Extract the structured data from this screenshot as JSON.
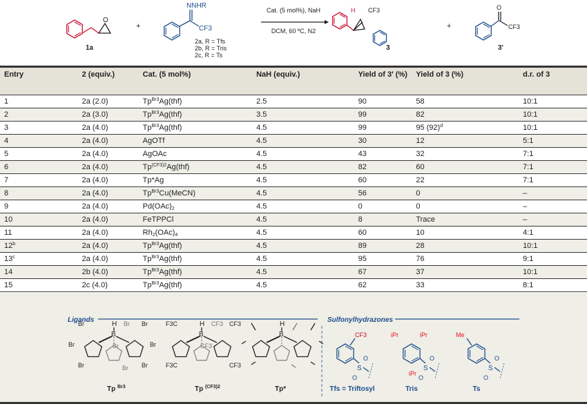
{
  "scheme": {
    "reactant1": {
      "label": "1a",
      "atoms": [
        "O"
      ]
    },
    "plus": "+",
    "reactant2": {
      "atoms": [
        "NNHR",
        "CF3"
      ],
      "variants": [
        "2a, R = Tfs",
        "2b, R = Tris",
        "2c, R = Ts"
      ]
    },
    "conditions_top": "Cat. (5 mol%), NaH",
    "conditions_bottom": "DCM, 60 ºC, N2",
    "product": {
      "label": "3",
      "atoms": [
        "H",
        "CF3"
      ]
    },
    "byproduct": {
      "label": "3'",
      "atoms": [
        "O",
        "CF3"
      ]
    },
    "colors": {
      "red": "#c8102e",
      "blue": "#1f4e8c"
    }
  },
  "table": {
    "headers": [
      "Entry",
      "2 (equiv.)",
      "Cat. (5 mol%)",
      "NaH (equiv.)",
      "Yield of 3′ (%)",
      "Yield of 3 (%)",
      "d.r. of 3"
    ],
    "rows": [
      [
        "1",
        "2a (2.0)",
        [
          {
            "t": "Tp"
          },
          {
            "sup": "Br3"
          },
          {
            "t": "Ag(thf)"
          }
        ],
        "2.5",
        "90",
        "58",
        "10:1"
      ],
      [
        "2",
        "2a (3.0)",
        [
          {
            "t": "Tp"
          },
          {
            "sup": "Br3"
          },
          {
            "t": "Ag(thf)"
          }
        ],
        "3.5",
        "99",
        "82",
        "10:1"
      ],
      [
        "3",
        "2a (4.0)",
        [
          {
            "t": "Tp"
          },
          {
            "sup": "Br3"
          },
          {
            "t": "Ag(thf)"
          }
        ],
        "4.5",
        "99",
        [
          {
            "t": "95 (92)"
          },
          {
            "sup": "d"
          }
        ],
        "10:1"
      ],
      [
        "4",
        "2a (4.0)",
        "AgOTf",
        "4.5",
        "30",
        "12",
        "5:1"
      ],
      [
        "5",
        "2a (4.0)",
        "AgOAc",
        "4.5",
        "43",
        "32",
        "7:1"
      ],
      [
        "6",
        "2a (4.0)",
        [
          {
            "t": "Tp"
          },
          {
            "sup": "(CF3)2"
          },
          {
            "t": "Ag(thf)"
          }
        ],
        "4.5",
        "82",
        "60",
        "7:1"
      ],
      [
        "7",
        "2a (4.0)",
        "Tp*Ag",
        "4.5",
        "60",
        "22",
        "7:1"
      ],
      [
        "8",
        "2a (4.0)",
        [
          {
            "t": "Tp"
          },
          {
            "sup": "Br3"
          },
          {
            "t": "Cu(MeCN)"
          }
        ],
        "4.5",
        "56",
        "0",
        "–"
      ],
      [
        "9",
        "2a (4.0)",
        [
          {
            "t": "Pd(OAc)"
          },
          {
            "sub": "2"
          }
        ],
        "4.5",
        "0",
        "0",
        "–"
      ],
      [
        "10",
        "2a (4.0)",
        "FeTPPCl",
        "4.5",
        "8",
        "Trace",
        "–"
      ],
      [
        "11",
        "2a (4.0)",
        [
          {
            "t": "Rh"
          },
          {
            "sub": "2"
          },
          {
            "t": "(OAc)"
          },
          {
            "sub": "4"
          }
        ],
        "4.5",
        "60",
        "10",
        "4:1"
      ],
      [
        [
          {
            "t": "12"
          },
          {
            "sup": "b"
          }
        ],
        "2a (4.0)",
        [
          {
            "t": "Tp"
          },
          {
            "sup": "Br3"
          },
          {
            "t": "Ag(thf)"
          }
        ],
        "4.5",
        "89",
        "28",
        "10:1"
      ],
      [
        [
          {
            "t": "13"
          },
          {
            "sup": "c"
          }
        ],
        "2a (4.0)",
        [
          {
            "t": "Tp"
          },
          {
            "sup": "Br3"
          },
          {
            "t": "Ag(thf)"
          }
        ],
        "4.5",
        "95",
        "76",
        "9:1"
      ],
      [
        "14",
        "2b (4.0)",
        [
          {
            "t": "Tp"
          },
          {
            "sup": "Br3"
          },
          {
            "t": "Ag(thf)"
          }
        ],
        "4.5",
        "67",
        "37",
        "10:1"
      ],
      [
        "15",
        "2c (4.0)",
        [
          {
            "t": "Tp"
          },
          {
            "sup": "Br3"
          },
          {
            "t": "Ag(thf)"
          }
        ],
        "4.5",
        "62",
        "33",
        "8:1"
      ]
    ]
  },
  "ligands": {
    "heading": "Ligands",
    "items": [
      {
        "name": "Tp",
        "sup": "Br3",
        "subst": [
          "Br",
          "Br",
          "Br",
          "Br",
          "Br",
          "Br",
          "Br",
          "Br",
          "Br"
        ]
      },
      {
        "name": "Tp",
        "sup": "(CF3)2",
        "subst": [
          "F3C",
          "",
          "F3C",
          "CF3",
          "",
          "CF3",
          "CF3",
          "",
          "CF3"
        ]
      },
      {
        "name": "Tp*",
        "sup": "",
        "subst": [
          "",
          "",
          "",
          "",
          "",
          "",
          "",
          "",
          ""
        ]
      }
    ],
    "atoms": [
      "H",
      "B"
    ]
  },
  "sulfonylhydrazones": {
    "heading": "Sulfonylhydrazones",
    "items": [
      {
        "name": "Tfs = Triftosyl",
        "subst": [
          "CF3"
        ]
      },
      {
        "name": "Tris",
        "subst": [
          "iPr",
          "iPr",
          "iPr"
        ]
      },
      {
        "name": "Ts",
        "subst": [
          "Me"
        ]
      }
    ],
    "atoms": [
      "S",
      "O",
      "O"
    ]
  },
  "colors": {
    "header_bg": "#e5e3d8",
    "stripe_bg": "#efeee7",
    "heading_blue": "#1f4e8c"
  }
}
